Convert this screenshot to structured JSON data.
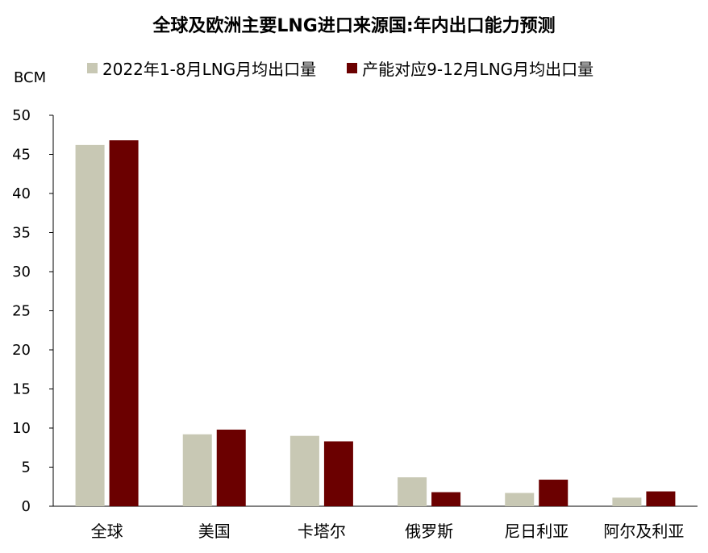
{
  "chart_data": {
    "type": "bar",
    "title": "全球及欧洲主要LNG进口来源国:年内出口能力预测",
    "ylabel": "BCM",
    "ylim": [
      0,
      50
    ],
    "yticks": [
      0,
      5,
      10,
      15,
      20,
      25,
      30,
      35,
      40,
      45,
      50
    ],
    "grid": false,
    "legend_position": "top",
    "categories": [
      "全球",
      "美国",
      "卡塔尔",
      "俄罗斯",
      "尼日利亚",
      "阿尔及利亚"
    ],
    "series": [
      {
        "name": "2022年1-8月LNG月均出口量",
        "color": "#c8c8b4",
        "values": [
          46.2,
          9.2,
          9.0,
          3.7,
          1.7,
          1.1
        ]
      },
      {
        "name": "产能对应9-12月LNG月均出口量",
        "color": "#6b0000",
        "values": [
          46.8,
          9.8,
          8.3,
          1.8,
          3.4,
          1.9
        ]
      }
    ]
  }
}
